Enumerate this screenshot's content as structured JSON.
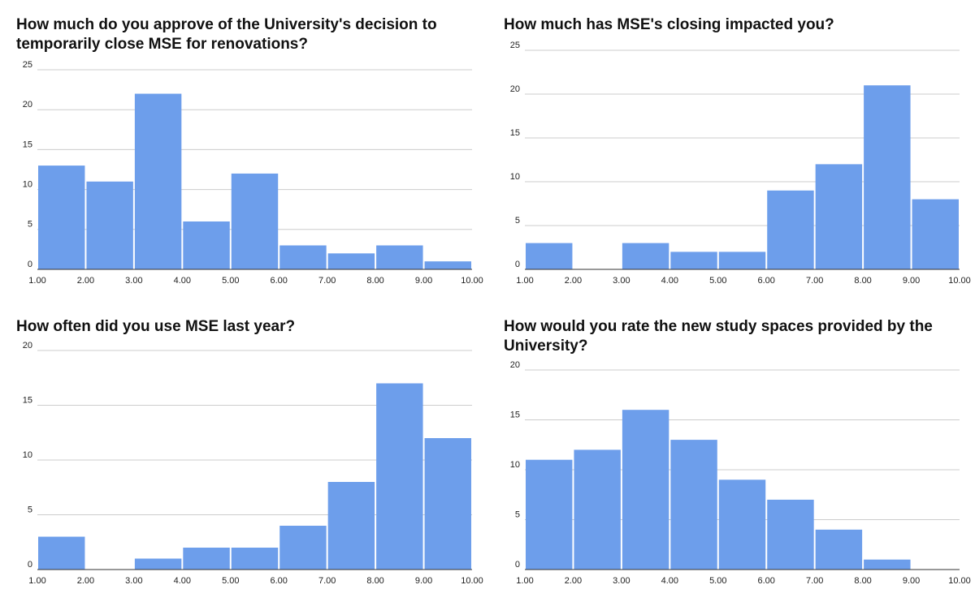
{
  "chart_data": [
    {
      "type": "histogram",
      "title": "How much do you approve of the University's decision to temporarily close MSE for renovations?",
      "bins": [
        1,
        2,
        3,
        4,
        5,
        6,
        7,
        8,
        9,
        10
      ],
      "values": [
        13,
        11,
        22,
        6,
        12,
        3,
        2,
        3,
        1
      ],
      "color": "#6d9eeb",
      "xlim": [
        1,
        10
      ],
      "xticks": [
        {
          "value": 1,
          "label": "1.00"
        },
        {
          "value": 2,
          "label": "2.00"
        },
        {
          "value": 3,
          "label": "3.00"
        },
        {
          "value": 4,
          "label": "4.00"
        },
        {
          "value": 5,
          "label": "5.00"
        },
        {
          "value": 6,
          "label": "6.00"
        },
        {
          "value": 7,
          "label": "7.00"
        },
        {
          "value": 8,
          "label": "8.00"
        },
        {
          "value": 9,
          "label": "9.00"
        },
        {
          "value": 10,
          "label": "10.00"
        }
      ],
      "ylim": [
        0,
        25
      ],
      "yticks": [
        0,
        5,
        10,
        15,
        20,
        25
      ],
      "grid": true
    },
    {
      "type": "histogram",
      "title": "How much has MSE's closing impacted you?",
      "bins": [
        1,
        2,
        3,
        4,
        5,
        6,
        7,
        8,
        9,
        10
      ],
      "values": [
        3,
        0,
        3,
        2,
        2,
        9,
        12,
        21,
        8
      ],
      "color": "#6d9eeb",
      "xlim": [
        1,
        10
      ],
      "xticks": [
        {
          "value": 1,
          "label": "1.00"
        },
        {
          "value": 2,
          "label": "2.00"
        },
        {
          "value": 3,
          "label": "3.00"
        },
        {
          "value": 4,
          "label": "4.00"
        },
        {
          "value": 5,
          "label": "5.00"
        },
        {
          "value": 6,
          "label": "6.00"
        },
        {
          "value": 7,
          "label": "7.00"
        },
        {
          "value": 8,
          "label": "8.00"
        },
        {
          "value": 9,
          "label": "9.00"
        },
        {
          "value": 10,
          "label": "10.00"
        }
      ],
      "ylim": [
        0,
        25
      ],
      "yticks": [
        0,
        5,
        10,
        15,
        20,
        25
      ],
      "grid": true
    },
    {
      "type": "histogram",
      "title": "How often did you use MSE last year?",
      "bins": [
        1,
        2,
        3,
        4,
        5,
        6,
        7,
        8,
        9,
        10
      ],
      "values": [
        3,
        0,
        1,
        2,
        2,
        4,
        8,
        17,
        12
      ],
      "color": "#6d9eeb",
      "xlim": [
        1,
        10
      ],
      "xticks": [
        {
          "value": 1,
          "label": "1.00"
        },
        {
          "value": 2,
          "label": "2.00"
        },
        {
          "value": 3,
          "label": "3.00"
        },
        {
          "value": 4,
          "label": "4.00"
        },
        {
          "value": 5,
          "label": "5.00"
        },
        {
          "value": 6,
          "label": "6.00"
        },
        {
          "value": 7,
          "label": "7.00"
        },
        {
          "value": 8,
          "label": "8.00"
        },
        {
          "value": 9,
          "label": "9.00"
        },
        {
          "value": 10,
          "label": "10.00"
        }
      ],
      "ylim": [
        0,
        20
      ],
      "yticks": [
        0,
        5,
        10,
        15,
        20
      ],
      "grid": true
    },
    {
      "type": "histogram",
      "title": "How would you rate the new study spaces provided by the University?",
      "bins": [
        1,
        2,
        3,
        4,
        5,
        6,
        7,
        8,
        9,
        10
      ],
      "values": [
        11,
        12,
        16,
        13,
        9,
        7,
        4,
        1,
        0
      ],
      "color": "#6d9eeb",
      "xlim": [
        1,
        10
      ],
      "xticks": [
        {
          "value": 1,
          "label": "1.00"
        },
        {
          "value": 2,
          "label": "2.00"
        },
        {
          "value": 3,
          "label": "3.00"
        },
        {
          "value": 4,
          "label": "4.00"
        },
        {
          "value": 5,
          "label": "5.00"
        },
        {
          "value": 6,
          "label": "6.00"
        },
        {
          "value": 7,
          "label": "7.00"
        },
        {
          "value": 8,
          "label": "8.00"
        },
        {
          "value": 9,
          "label": "9.00"
        },
        {
          "value": 10,
          "label": "10.00"
        }
      ],
      "ylim": [
        0,
        20
      ],
      "yticks": [
        0,
        5,
        10,
        15,
        20
      ],
      "grid": true
    }
  ]
}
